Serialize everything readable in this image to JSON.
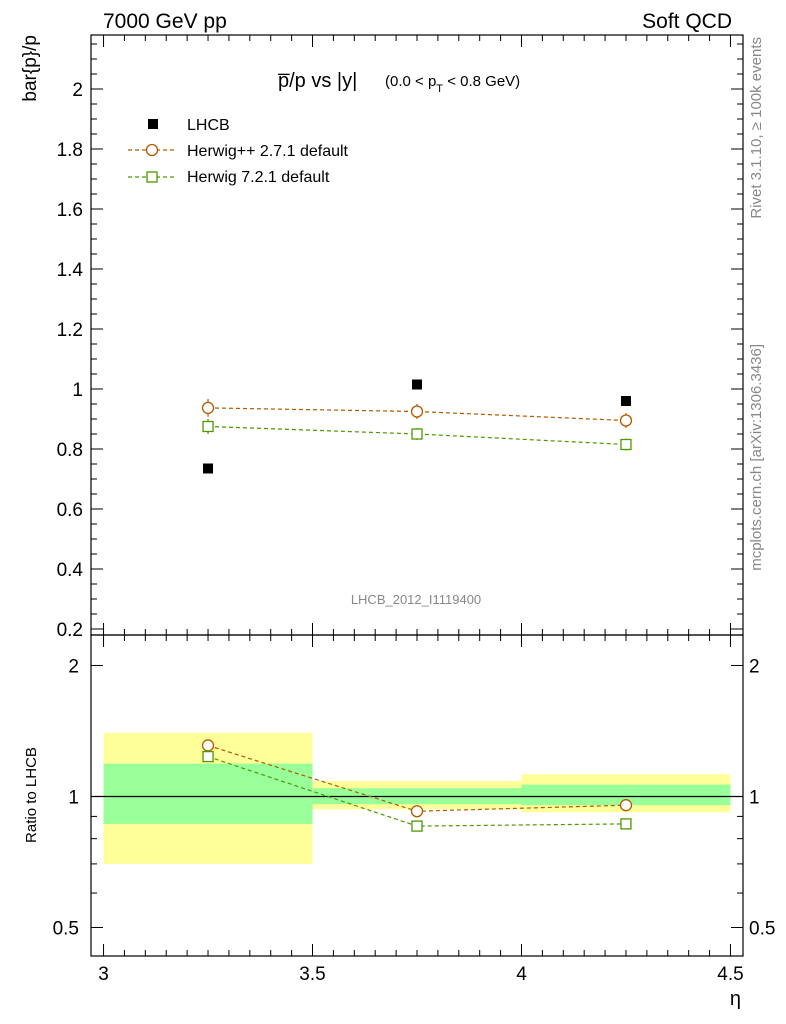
{
  "header": {
    "left": "7000 GeV pp",
    "right": "Soft QCD"
  },
  "side_text": {
    "rivet": "Rivet 3.1.10, ≥ 100k events",
    "source": "mcplots.cern.ch [arXiv:1306.3436]"
  },
  "chart_data": [
    {
      "type": "scatter",
      "title": {
        "main": "p̅/p vs |y|",
        "sub_pre": "(0.0 < p",
        "sub_index": "T",
        "sub_post": " < 0.8 GeV)"
      },
      "ylabel": "bar{p}/p",
      "ylim": [
        0.18,
        2.18
      ],
      "yticks": [
        0.2,
        0.4,
        0.6,
        0.8,
        1,
        1.2,
        1.4,
        1.6,
        1.8,
        2
      ],
      "ytick_labels": [
        "0.2",
        "0.4",
        "0.6",
        "0.8",
        "1",
        "1.2",
        "1.4",
        "1.6",
        "1.8",
        "2"
      ],
      "xlim": [
        2.97,
        4.53
      ],
      "watermark": "LHCB_2012_I1119400",
      "legend_position": "top-left",
      "series": [
        {
          "name": "LHCB",
          "marker": "filled-square",
          "color": "#000000",
          "x": [
            3.25,
            3.75,
            4.25
          ],
          "y": [
            0.735,
            1.015,
            0.96
          ],
          "xerr": [
            0.25,
            0.25,
            0.25
          ]
        },
        {
          "name": "Herwig++ 2.7.1 default",
          "marker": "open-circle",
          "color": "#b35900",
          "linestyle": "dashed",
          "x": [
            3.25,
            3.75,
            4.25
          ],
          "y": [
            0.937,
            0.925,
            0.895
          ],
          "yerr": [
            0.03,
            0.025,
            0.025
          ]
        },
        {
          "name": "Herwig 7.2.1 default",
          "marker": "open-square",
          "color": "#4d9900",
          "linestyle": "dashed",
          "x": [
            3.25,
            3.75,
            4.25
          ],
          "y": [
            0.875,
            0.85,
            0.815
          ],
          "yerr": [
            0.025,
            0.02,
            0.02
          ]
        }
      ]
    },
    {
      "type": "scatter",
      "ylabel": "Ratio to LHCB",
      "xlabel": "η",
      "ylim": [
        0.43,
        2.35
      ],
      "log_y": true,
      "yticks": [
        0.5,
        1,
        2
      ],
      "ytick_labels": [
        "0.5",
        "1",
        "2"
      ],
      "xlim": [
        2.97,
        4.53
      ],
      "xticks": [
        3,
        3.5,
        4,
        4.5
      ],
      "xtick_labels": [
        "3",
        "3.5",
        "4",
        "4.5"
      ],
      "reference_line": 1,
      "bands": [
        {
          "x": [
            3.0,
            3.5
          ],
          "yellow": [
            0.7,
            1.4
          ],
          "green": [
            0.865,
            1.19
          ]
        },
        {
          "x": [
            3.5,
            4.0
          ],
          "yellow": [
            0.935,
            1.085
          ],
          "green": [
            0.96,
            1.045
          ]
        },
        {
          "x": [
            4.0,
            4.5
          ],
          "yellow": [
            0.92,
            1.125
          ],
          "green": [
            0.955,
            1.065
          ]
        }
      ],
      "band_colors": {
        "yellow": "#ffff99",
        "green": "#99ff99"
      },
      "series": [
        {
          "name": "Herwig++ 2.7.1 default",
          "marker": "open-circle",
          "color": "#b35900",
          "x": [
            3.25,
            3.75,
            4.25
          ],
          "y": [
            1.31,
            0.925,
            0.955
          ]
        },
        {
          "name": "Herwig 7.2.1 default",
          "marker": "open-square",
          "color": "#4d9900",
          "x": [
            3.25,
            3.75,
            4.25
          ],
          "y": [
            1.235,
            0.855,
            0.865
          ]
        }
      ]
    }
  ]
}
